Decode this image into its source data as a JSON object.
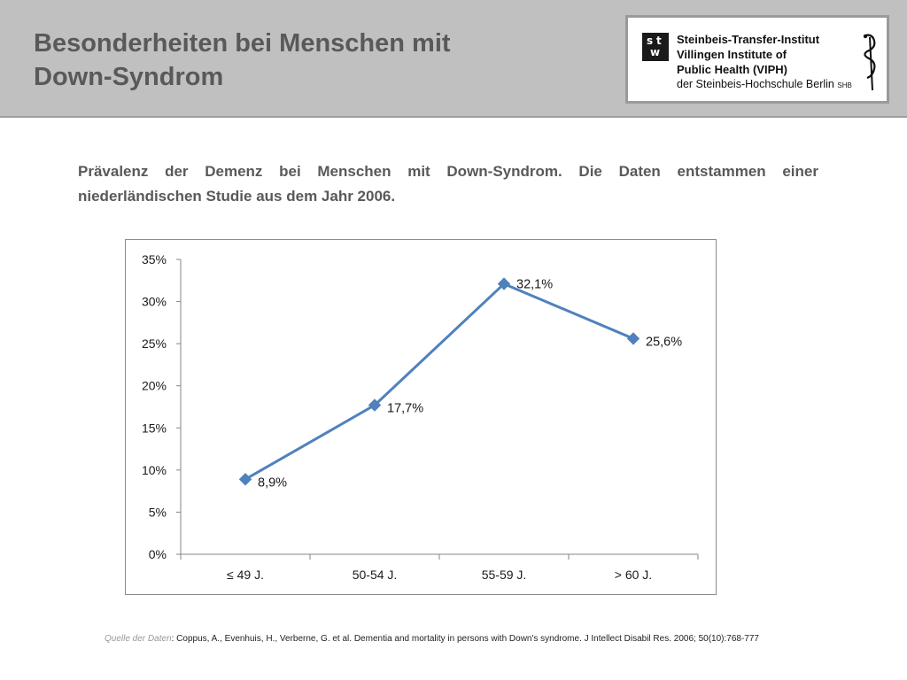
{
  "header": {
    "title_line1": "Besonderheiten bei Menschen mit",
    "title_line2": "Down-Syndrom",
    "logo": {
      "line1": "Steinbeis-Transfer-Institut",
      "line2": "Villingen Institute of",
      "line3": "Public Health (VIPH)",
      "line4": "der Steinbeis-Hochschule Berlin",
      "line4_suffix": "SHB",
      "box_top_left": "s",
      "box_top_right": "t",
      "box_bottom": "w"
    }
  },
  "subtitle": "Prävalenz der Demenz bei Menschen mit Down-Syndrom. Die Daten entstammen einer niederländischen Studie aus dem Jahr 2006.",
  "chart_data": {
    "type": "line",
    "categories": [
      "≤ 49 J.",
      "50-54 J.",
      "55-59 J.",
      "> 60 J."
    ],
    "series": [
      {
        "values": [
          8.9,
          17.7,
          32.1,
          25.6
        ]
      }
    ],
    "data_labels": [
      "8,9%",
      "17,7%",
      "32,1%",
      "25,6%"
    ],
    "ylim": [
      0,
      35
    ],
    "yticks": [
      0,
      5,
      10,
      15,
      20,
      25,
      30,
      35
    ],
    "ytick_labels": [
      "0%",
      "5%",
      "10%",
      "15%",
      "20%",
      "25%",
      "30%",
      "35%"
    ],
    "grid": false,
    "legend": "none",
    "color": "#4f81bd"
  },
  "source": {
    "label": "Quelle  der Daten",
    "text": ": Coppus, A., Evenhuis, H., Verberne, G. et al. Dementia and mortality in persons with Down's syndrome. J Intellect Disabil Res. 2006; 50(10):768-777"
  }
}
